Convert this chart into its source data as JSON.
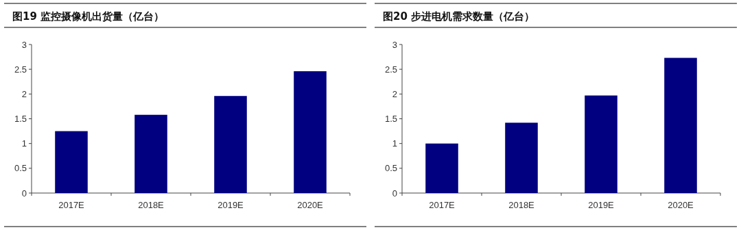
{
  "chart_data": [
    {
      "type": "bar",
      "title": "图19 监控摄像机出货量（亿台）",
      "categories": [
        "2017E",
        "2018E",
        "2019E",
        "2020E"
      ],
      "values": [
        1.25,
        1.58,
        1.96,
        2.46
      ],
      "color": "#000080",
      "ylim": [
        0,
        3
      ],
      "yticks": [
        0,
        0.5,
        1,
        1.5,
        2,
        2.5,
        3
      ]
    },
    {
      "type": "bar",
      "title": "图20 步进电机需求数量（亿台）",
      "categories": [
        "2017E",
        "2018E",
        "2019E",
        "2020E"
      ],
      "values": [
        1.0,
        1.42,
        1.97,
        2.73
      ],
      "color": "#000080",
      "ylim": [
        0,
        3
      ],
      "yticks": [
        0,
        0.5,
        1,
        1.5,
        2,
        2.5,
        3
      ]
    }
  ]
}
